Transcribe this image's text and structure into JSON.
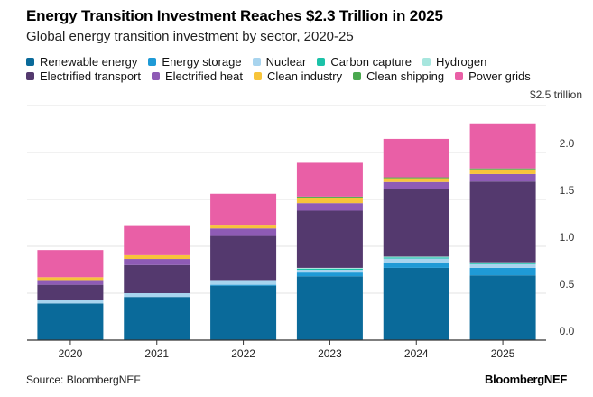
{
  "title": "Energy Transition Investment Reaches $2.3 Trillion in 2025",
  "subtitle": "Global energy transition investment by sector, 2020-25",
  "source": "Source: BloombergNEF",
  "brand": "BloombergNEF",
  "chart_data": {
    "type": "bar",
    "stacked": true,
    "categories": [
      "2020",
      "2021",
      "2022",
      "2023",
      "2024",
      "2025"
    ],
    "ylabel": "$2.5 trillion",
    "ylim": [
      0,
      2.5
    ],
    "yticks": [
      "0.0",
      "0.5",
      "1.0",
      "1.5",
      "2.0"
    ],
    "grid": true,
    "legend_placement": "top",
    "series": [
      {
        "name": "Renewable energy",
        "color": "#0a6a9a",
        "values": [
          0.39,
          0.46,
          0.58,
          0.68,
          0.77,
          0.69
        ]
      },
      {
        "name": "Energy storage",
        "color": "#1f9ad6",
        "values": [
          0.0,
          0.0,
          0.01,
          0.04,
          0.05,
          0.08
        ]
      },
      {
        "name": "Nuclear",
        "color": "#a8d4ee",
        "values": [
          0.04,
          0.04,
          0.05,
          0.03,
          0.05,
          0.04
        ]
      },
      {
        "name": "Carbon capture",
        "color": "#1cc2a8",
        "values": [
          0.0,
          0.0,
          0.0,
          0.01,
          0.01,
          0.01
        ]
      },
      {
        "name": "Hydrogen",
        "color": "#a7e6de",
        "values": [
          0.0,
          0.0,
          0.0,
          0.01,
          0.01,
          0.01
        ]
      },
      {
        "name": "Electrified transport",
        "color": "#54396e",
        "values": [
          0.16,
          0.3,
          0.47,
          0.61,
          0.72,
          0.86
        ]
      },
      {
        "name": "Electrified heat",
        "color": "#8e5bb5",
        "values": [
          0.05,
          0.065,
          0.08,
          0.08,
          0.075,
          0.08
        ]
      },
      {
        "name": "Clean industry",
        "color": "#f7c43a",
        "values": [
          0.03,
          0.04,
          0.04,
          0.06,
          0.04,
          0.05
        ]
      },
      {
        "name": "Clean shipping",
        "color": "#4aa84f",
        "values": [
          0.0,
          0.0,
          0.0,
          0.01,
          0.01,
          0.01
        ]
      },
      {
        "name": "Power grids",
        "color": "#e95fa6",
        "values": [
          0.29,
          0.32,
          0.33,
          0.36,
          0.41,
          0.48
        ]
      }
    ]
  }
}
